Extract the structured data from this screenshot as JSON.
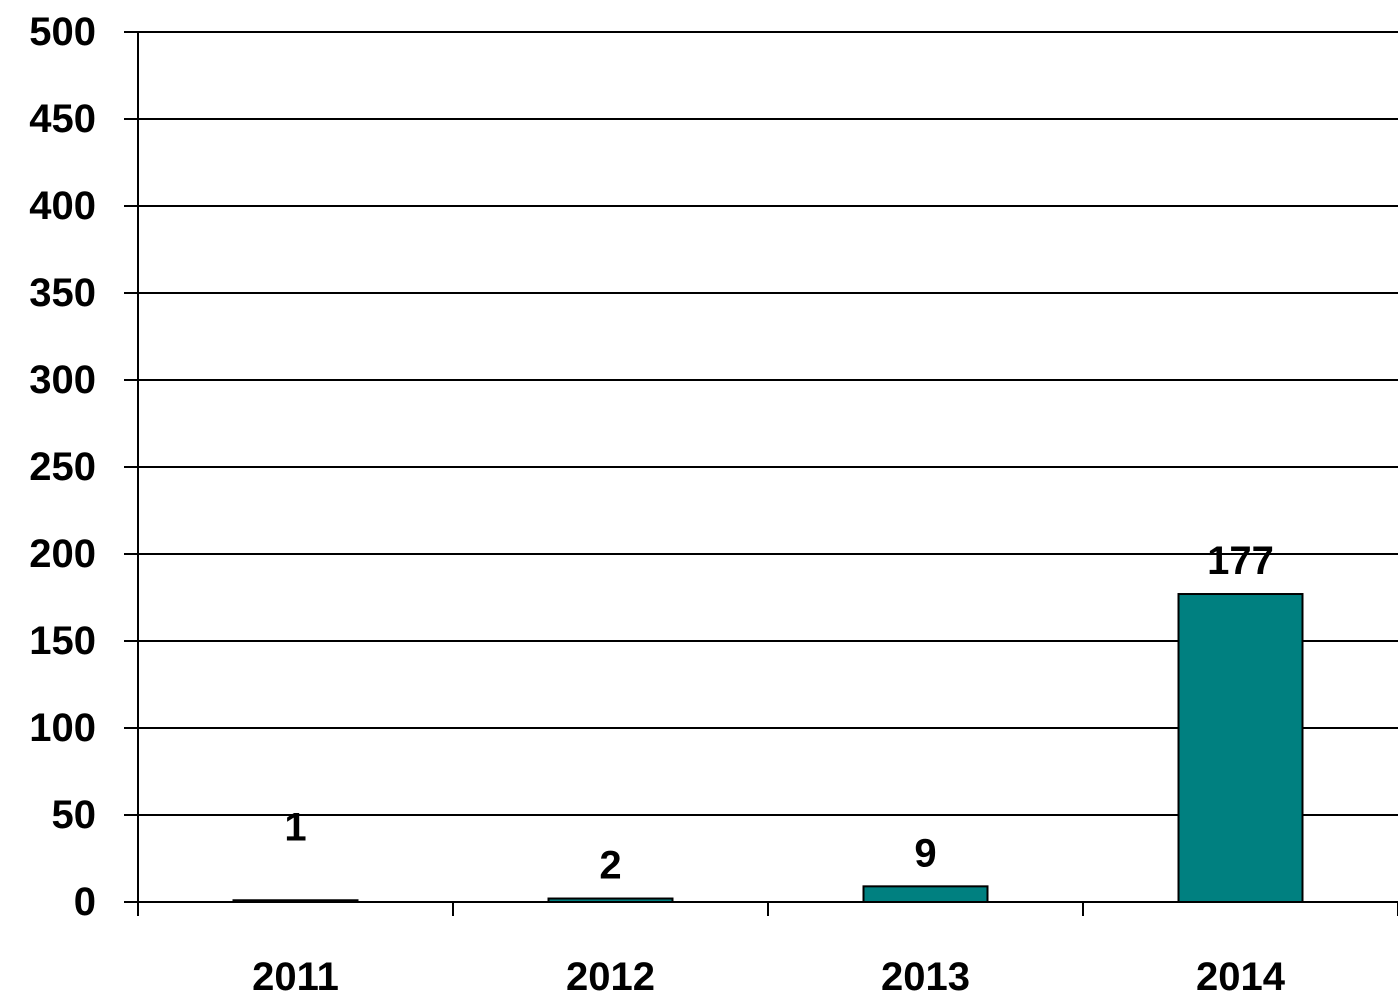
{
  "chart_data": {
    "type": "bar",
    "categories": [
      "2011",
      "2012",
      "2013",
      "2014"
    ],
    "values": [
      1,
      2,
      9,
      177
    ],
    "data_labels": [
      "1",
      "2",
      "9",
      "177"
    ],
    "title": "",
    "xlabel": "",
    "ylabel": "",
    "ylim": [
      0,
      500
    ],
    "yticks": [
      0,
      50,
      100,
      150,
      200,
      250,
      300,
      350,
      400,
      450,
      500
    ],
    "ytick_labels": [
      "0",
      "50",
      "100",
      "150",
      "200",
      "250",
      "300",
      "350",
      "400",
      "450",
      "500"
    ],
    "grid": true,
    "legend": "none",
    "colors": {
      "bar": "#008080",
      "bar_outline": "#000000",
      "grid": "#000000"
    }
  }
}
